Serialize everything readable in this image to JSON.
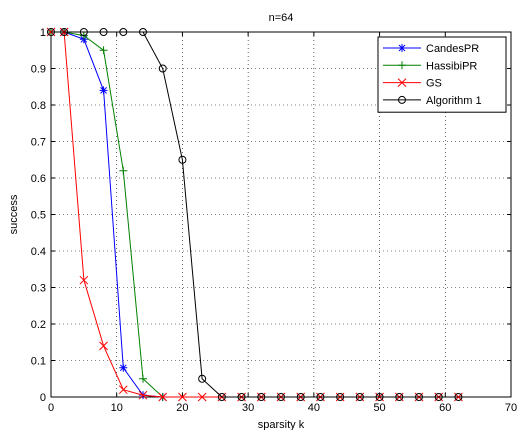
{
  "chart_data": {
    "type": "line",
    "title": "n=64",
    "xlabel": "sparsity k",
    "ylabel": "success",
    "xlim": [
      0,
      70
    ],
    "ylim": [
      0,
      1
    ],
    "xticks": [
      0,
      10,
      20,
      30,
      40,
      50,
      60,
      70
    ],
    "yticks": [
      0,
      0.1,
      0.2,
      0.3,
      0.4,
      0.5,
      0.6,
      0.7,
      0.8,
      0.9,
      1
    ],
    "grid": true,
    "legend_position": "top-right",
    "series": [
      {
        "name": "CandesPR",
        "color": "#0000ff",
        "marker": "star",
        "x": [
          0,
          2,
          5,
          8,
          11,
          14,
          17
        ],
        "y": [
          1,
          1,
          0.98,
          0.84,
          0.08,
          0.005,
          0
        ]
      },
      {
        "name": "HassibiPR",
        "color": "#008000",
        "marker": "plus",
        "x": [
          0,
          2,
          5,
          8,
          11,
          14,
          17
        ],
        "y": [
          1,
          1,
          0.99,
          0.95,
          0.62,
          0.05,
          0
        ]
      },
      {
        "name": "GS",
        "color": "#ff0000",
        "marker": "x",
        "x": [
          0,
          2,
          5,
          8,
          11,
          14,
          17,
          20,
          23,
          26,
          29,
          32,
          35,
          38,
          41,
          44,
          47,
          50,
          53,
          56,
          59,
          62
        ],
        "y": [
          1,
          1,
          0.32,
          0.14,
          0.02,
          0.005,
          0,
          0,
          0,
          0,
          0,
          0,
          0,
          0,
          0,
          0,
          0,
          0,
          0,
          0,
          0,
          0
        ]
      },
      {
        "name": "Algorithm 1",
        "color": "#000000",
        "marker": "circle",
        "x": [
          0,
          2,
          5,
          8,
          11,
          14,
          17,
          20,
          23,
          26,
          29,
          32,
          35,
          38,
          41,
          44,
          47,
          50,
          53,
          56,
          59,
          62
        ],
        "y": [
          1,
          1,
          1,
          1,
          1,
          1,
          0.9,
          0.65,
          0.05,
          0,
          0,
          0,
          0,
          0,
          0,
          0,
          0,
          0,
          0,
          0,
          0,
          0
        ]
      }
    ]
  }
}
